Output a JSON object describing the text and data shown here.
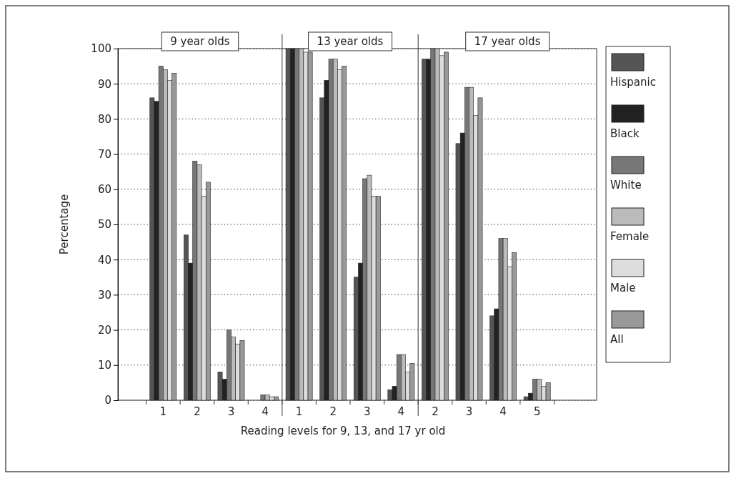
{
  "chart_data": {
    "type": "bar",
    "xlabel": "Reading levels for 9, 13, and 17 yr old",
    "ylabel": "Percentage",
    "categories": [
      "1",
      "2",
      "3",
      "4",
      "1",
      "2",
      "3",
      "4",
      "2",
      "3",
      "4",
      "5"
    ],
    "series": [
      {
        "name": "Hispanic",
        "color": "#555555",
        "values": [
          86,
          47,
          8,
          0,
          100,
          86,
          35,
          3,
          97,
          73,
          24,
          1
        ]
      },
      {
        "name": "Black",
        "color": "#222222",
        "values": [
          85,
          39,
          6,
          0,
          100,
          91,
          39,
          4,
          97,
          76,
          26,
          2
        ]
      },
      {
        "name": "White",
        "color": "#777777",
        "values": [
          95,
          68,
          20,
          1.5,
          100,
          97,
          63,
          13,
          100,
          89,
          46,
          6
        ]
      },
      {
        "name": "Female",
        "color": "#bbbbbb",
        "values": [
          94,
          67,
          18,
          1.5,
          100,
          97,
          64,
          13,
          100,
          89,
          46,
          6
        ]
      },
      {
        "name": "Male",
        "color": "#dddddd",
        "values": [
          91,
          58,
          16,
          1,
          99,
          94,
          58,
          8,
          98,
          81,
          38,
          4
        ]
      },
      {
        "name": "All",
        "color": "#999999",
        "values": [
          93,
          62,
          17,
          1,
          99,
          95,
          58,
          10.5,
          99,
          86,
          42,
          5
        ]
      }
    ],
    "annotations": [
      "9 year olds",
      "13 year olds",
      "17 year olds"
    ],
    "ylim": [
      0,
      100
    ],
    "yticks": [
      0,
      10,
      20,
      30,
      40,
      50,
      60,
      70,
      80,
      90,
      100
    ],
    "grid": "y",
    "legend": "right"
  }
}
